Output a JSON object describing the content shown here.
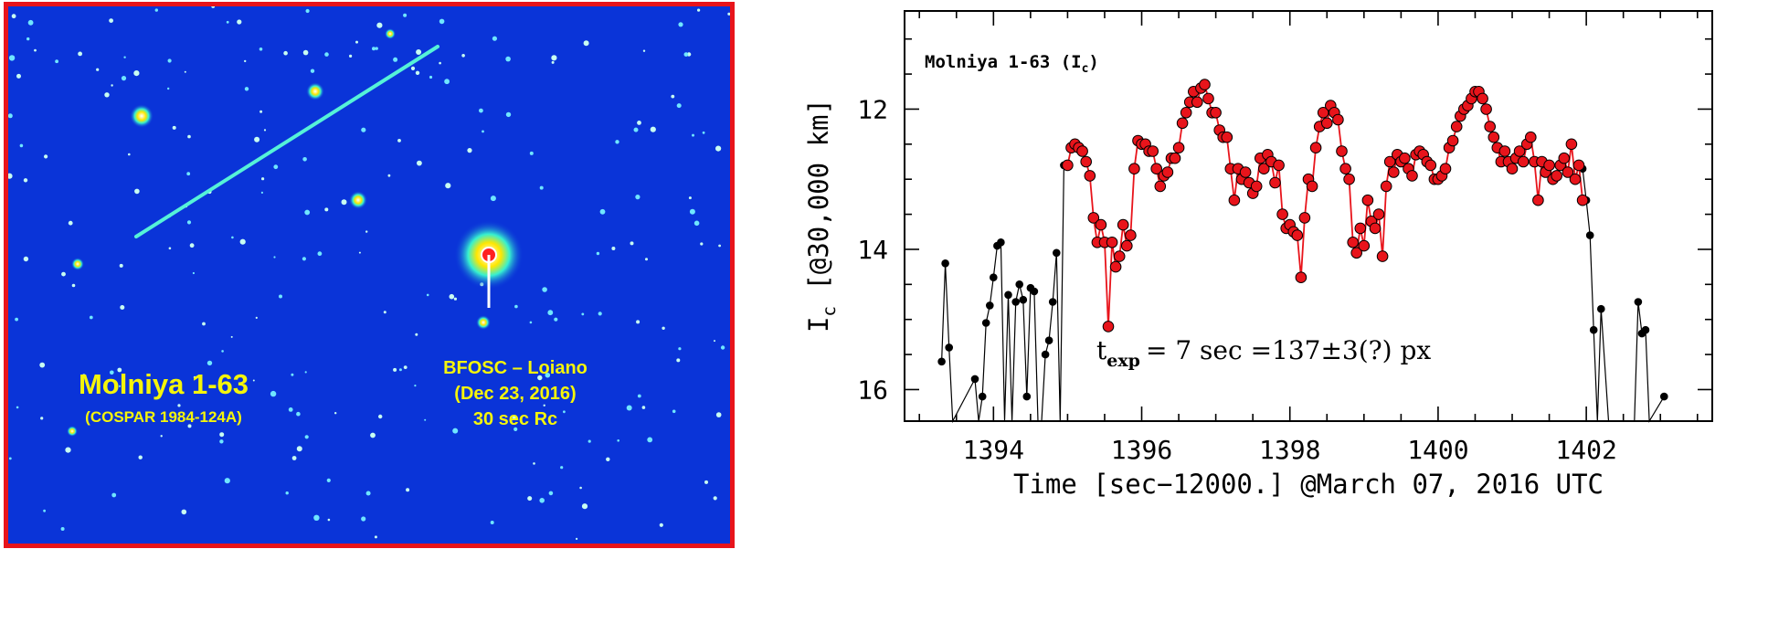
{
  "image_panel": {
    "object_name": "Molniya 1-63",
    "cospar_id": "(COSPAR 1984-124A)",
    "instrument": "BFOSC – Loiano",
    "date": "(Dec 23, 2016)",
    "exposure": "30 sec Rc",
    "border_color": "#e8141b",
    "sky_color": "#0a34d8",
    "text_color": "#f5f50a"
  },
  "chart_data": {
    "type": "line",
    "title": "Molniya 1-63 (I",
    "title_sub": "c",
    "title_end": ")",
    "xlabel": "Time [sec−12000.] @March 07, 2016 UTC",
    "ylabel_main": "I",
    "ylabel_sub": "c",
    "ylabel_rest": " [@30,000 km]",
    "annotation": {
      "t": "t",
      "sub": "exp",
      "text": "= 7 sec =137±3(?) px"
    },
    "xlim": [
      1392.8,
      1403.7
    ],
    "ylim": [
      16.45,
      10.6
    ],
    "y_inverted": true,
    "xticks": [
      1394,
      1396,
      1398,
      1400,
      1402
    ],
    "yticks": [
      12,
      14,
      16
    ],
    "grid": false,
    "series": [
      {
        "color": "#000000",
        "marker_fill": "#000000",
        "x": [
          1393.3,
          1393.35,
          1393.4,
          1393.45,
          1393.75,
          1393.8,
          1393.85,
          1393.9,
          1393.95,
          1394.0,
          1394.05,
          1394.1,
          1394.15,
          1394.2,
          1394.25,
          1394.3,
          1394.35,
          1394.4,
          1394.45,
          1394.5,
          1394.55,
          1394.6,
          1394.65,
          1394.7,
          1394.75,
          1394.8,
          1394.85,
          1394.9,
          1394.95
        ],
        "y": [
          15.6,
          14.2,
          15.4,
          16.6,
          15.85,
          16.6,
          16.1,
          15.05,
          14.8,
          14.4,
          13.95,
          13.9,
          16.6,
          14.65,
          16.6,
          14.75,
          14.5,
          14.72,
          16.1,
          14.55,
          14.6,
          16.6,
          16.6,
          15.5,
          15.3,
          14.75,
          14.05,
          16.6,
          12.8
        ]
      },
      {
        "color": "#000000",
        "marker_fill": "#000000",
        "x": [
          1401.95,
          1402.0,
          1402.05,
          1402.1,
          1402.15,
          1402.2,
          1402.3,
          1402.65,
          1402.7,
          1402.75,
          1402.8,
          1402.85,
          1403.05
        ],
        "y": [
          12.85,
          13.3,
          13.8,
          15.15,
          16.6,
          14.85,
          16.6,
          16.6,
          14.75,
          15.2,
          15.15,
          16.6,
          16.1
        ]
      },
      {
        "color": "#e8141b",
        "marker_fill": "#e8141b",
        "x": [
          1395.0,
          1395.05,
          1395.1,
          1395.15,
          1395.2,
          1395.25,
          1395.3,
          1395.35,
          1395.4,
          1395.45,
          1395.5,
          1395.55,
          1395.6,
          1395.65,
          1395.7,
          1395.75,
          1395.8,
          1395.85,
          1395.9,
          1395.95,
          1396.0,
          1396.05,
          1396.1,
          1396.15,
          1396.2,
          1396.25,
          1396.3,
          1396.35,
          1396.4,
          1396.45,
          1396.5,
          1396.55,
          1396.6,
          1396.65,
          1396.7,
          1396.75,
          1396.8,
          1396.85,
          1396.9,
          1396.95,
          1397.0,
          1397.05,
          1397.1,
          1397.15,
          1397.2,
          1397.25,
          1397.3,
          1397.35,
          1397.4,
          1397.45,
          1397.5,
          1397.55,
          1397.6,
          1397.65,
          1397.7,
          1397.75,
          1397.8,
          1397.85,
          1397.9,
          1397.95,
          1398.0,
          1398.05,
          1398.1,
          1398.15,
          1398.2,
          1398.25,
          1398.3,
          1398.35,
          1398.4,
          1398.45,
          1398.5,
          1398.55,
          1398.6,
          1398.65,
          1398.7,
          1398.75,
          1398.8,
          1398.85,
          1398.9,
          1398.95,
          1399.0,
          1399.05,
          1399.1,
          1399.15,
          1399.2,
          1399.25,
          1399.3,
          1399.35,
          1399.4,
          1399.45,
          1399.5,
          1399.55,
          1399.6,
          1399.65,
          1399.7,
          1399.75,
          1399.8,
          1399.85,
          1399.9,
          1399.95,
          1400.0,
          1400.05,
          1400.1,
          1400.15,
          1400.2,
          1400.25,
          1400.3,
          1400.35,
          1400.4,
          1400.45,
          1400.5,
          1400.55,
          1400.6,
          1400.65,
          1400.7,
          1400.75,
          1400.8,
          1400.85,
          1400.9,
          1400.95,
          1401.0,
          1401.05,
          1401.1,
          1401.15,
          1401.2,
          1401.25,
          1401.3,
          1401.35,
          1401.4,
          1401.45,
          1401.5,
          1401.55,
          1401.6,
          1401.65,
          1401.7,
          1401.75,
          1401.8,
          1401.85,
          1401.9,
          1401.95
        ],
        "y": [
          12.8,
          12.55,
          12.5,
          12.55,
          12.6,
          12.75,
          12.95,
          13.55,
          13.9,
          13.65,
          13.9,
          15.1,
          13.9,
          14.25,
          14.1,
          13.65,
          13.95,
          13.8,
          12.85,
          12.45,
          12.5,
          12.5,
          12.6,
          12.6,
          12.85,
          13.1,
          12.95,
          12.9,
          12.7,
          12.7,
          12.55,
          12.2,
          12.05,
          11.9,
          11.75,
          11.9,
          11.7,
          11.65,
          11.85,
          12.05,
          12.05,
          12.3,
          12.4,
          12.4,
          12.85,
          13.3,
          12.85,
          13.0,
          12.9,
          13.05,
          13.2,
          13.1,
          12.7,
          12.85,
          12.65,
          12.75,
          13.05,
          12.8,
          13.5,
          13.7,
          13.65,
          13.75,
          13.8,
          14.4,
          13.55,
          13.0,
          13.1,
          12.55,
          12.25,
          12.05,
          12.2,
          11.95,
          12.05,
          12.15,
          12.6,
          12.85,
          13.0,
          13.9,
          14.05,
          13.7,
          13.95,
          13.3,
          13.6,
          13.7,
          13.5,
          14.1,
          13.1,
          12.75,
          12.9,
          12.65,
          12.75,
          12.7,
          12.85,
          12.95,
          12.65,
          12.6,
          12.65,
          12.75,
          12.8,
          13.0,
          13.0,
          12.95,
          12.85,
          12.55,
          12.45,
          12.25,
          12.1,
          12.0,
          11.95,
          11.85,
          11.75,
          11.75,
          11.85,
          12.0,
          12.25,
          12.4,
          12.55,
          12.75,
          12.6,
          12.75,
          12.85,
          12.7,
          12.6,
          12.75,
          12.5,
          12.4,
          12.75,
          13.3,
          12.75,
          12.9,
          12.8,
          13.0,
          12.95,
          12.8,
          12.7,
          12.9,
          12.5,
          13.0,
          12.8,
          13.3
        ]
      }
    ]
  }
}
